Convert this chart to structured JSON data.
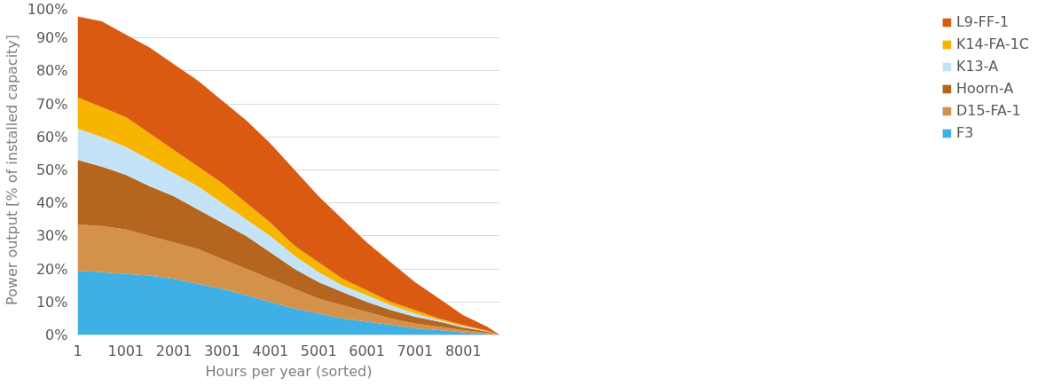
{
  "chart_data": {
    "type": "area",
    "stacked": true,
    "xlabel": "Hours per year (sorted)",
    "ylabel": "Power output [% of installed capacity]",
    "x": [
      1,
      501,
      1001,
      1501,
      2001,
      2501,
      3001,
      3501,
      4001,
      4501,
      5001,
      5501,
      6001,
      6501,
      7001,
      7501,
      8001,
      8501,
      8760
    ],
    "series": [
      {
        "name": "F3",
        "color": "#3fb0e6",
        "values": [
          19.5,
          19,
          18.5,
          18,
          17,
          15.5,
          14,
          12,
          10,
          8,
          6.5,
          5,
          4,
          3,
          2,
          1.5,
          0.8,
          0.3,
          0
        ]
      },
      {
        "name": "D15-FA-1",
        "color": "#d39149",
        "values": [
          14,
          14,
          13.5,
          12,
          11,
          10.5,
          9,
          8,
          7,
          6,
          4.5,
          4,
          3,
          2,
          1.5,
          1,
          0.7,
          0.3,
          0
        ]
      },
      {
        "name": "Hoorn-A",
        "color": "#b5651d",
        "values": [
          19.5,
          18,
          16.5,
          15,
          14,
          12,
          11,
          10,
          8,
          6,
          5,
          4,
          3,
          2.5,
          2,
          1.5,
          0.8,
          0.4,
          0
        ]
      },
      {
        "name": "K13-A",
        "color": "#c5e3f6",
        "values": [
          9.5,
          9,
          8.5,
          8,
          7,
          7,
          6,
          5,
          5,
          4,
          3,
          2,
          2,
          1.5,
          1,
          0.5,
          0.4,
          0.1,
          0
        ]
      },
      {
        "name": "K14-FA-1C",
        "color": "#f7b500",
        "values": [
          9.5,
          9,
          9,
          8,
          7,
          6,
          6,
          5,
          4,
          3,
          3,
          2,
          1.5,
          1,
          1,
          0.5,
          0.3,
          0.2,
          0
        ]
      },
      {
        "name": "L9-FF-1",
        "color": "#db5a12",
        "values": [
          24.5,
          26,
          25,
          26,
          26,
          26,
          25,
          25,
          24,
          23,
          20,
          18,
          14.5,
          12,
          8.5,
          6,
          3,
          1.2,
          0
        ]
      }
    ],
    "xlim": [
      1,
      8760
    ],
    "xticks": [
      1,
      1001,
      2001,
      3001,
      4001,
      5001,
      6001,
      7001,
      8001
    ],
    "ylim": [
      0,
      100
    ],
    "yticks": [
      {
        "value": 0,
        "label": "0%"
      },
      {
        "value": 10,
        "label": "10%"
      },
      {
        "value": 20,
        "label": "20%"
      },
      {
        "value": 30,
        "label": "30%"
      },
      {
        "value": 40,
        "label": "40%"
      },
      {
        "value": 50,
        "label": "50%"
      },
      {
        "value": 60,
        "label": "60%"
      },
      {
        "value": 70,
        "label": "70%"
      },
      {
        "value": 80,
        "label": "80%"
      },
      {
        "value": 90,
        "label": "90%"
      },
      {
        "value": 100,
        "label": "100%"
      }
    ],
    "grid": "y",
    "legend": "right"
  }
}
